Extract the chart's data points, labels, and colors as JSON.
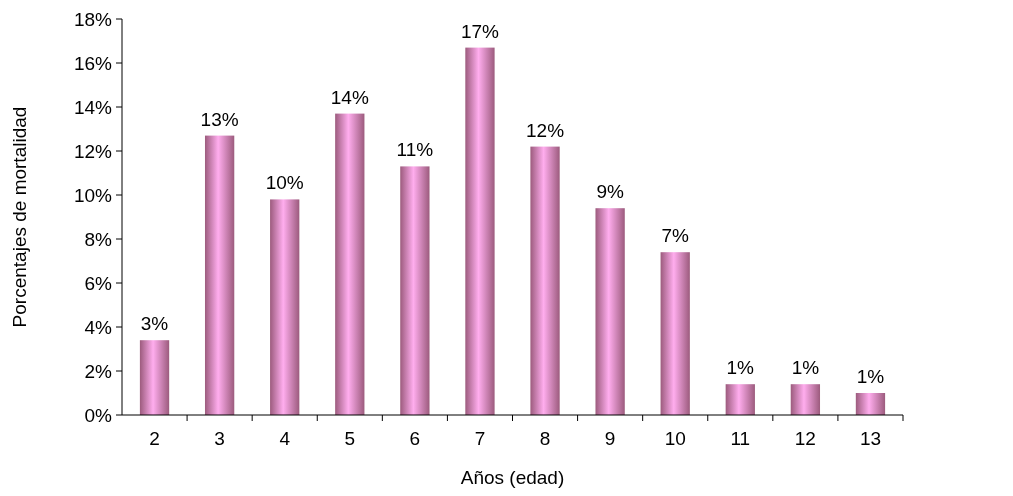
{
  "chart_data": {
    "type": "bar",
    "xlabel": "Años (edad)",
    "ylabel": "Porcentajes de mortalidad",
    "categories": [
      "2",
      "3",
      "4",
      "5",
      "6",
      "7",
      "8",
      "9",
      "10",
      "11",
      "12",
      "13"
    ],
    "values": [
      3.4,
      12.7,
      9.8,
      13.7,
      11.3,
      16.7,
      12.2,
      9.4,
      7.4,
      1.4,
      1.4,
      1.0
    ],
    "value_labels": [
      "3%",
      "13%",
      "10%",
      "14%",
      "11%",
      "17%",
      "12%",
      "9%",
      "7%",
      "1%",
      "1%",
      "1%"
    ],
    "color": "#f08cc0",
    "ylim": [
      0,
      18
    ],
    "yticks": [
      {
        "value": 0,
        "label": "0%"
      },
      {
        "value": 2,
        "label": "2%"
      },
      {
        "value": 4,
        "label": "4%"
      },
      {
        "value": 6,
        "label": "6%"
      },
      {
        "value": 8,
        "label": "8%"
      },
      {
        "value": 10,
        "label": "10%"
      },
      {
        "value": 12,
        "label": "12%"
      },
      {
        "value": 14,
        "label": "14%"
      },
      {
        "value": 16,
        "label": "16%"
      },
      {
        "value": 18,
        "label": "18%"
      }
    ],
    "grid": false
  }
}
